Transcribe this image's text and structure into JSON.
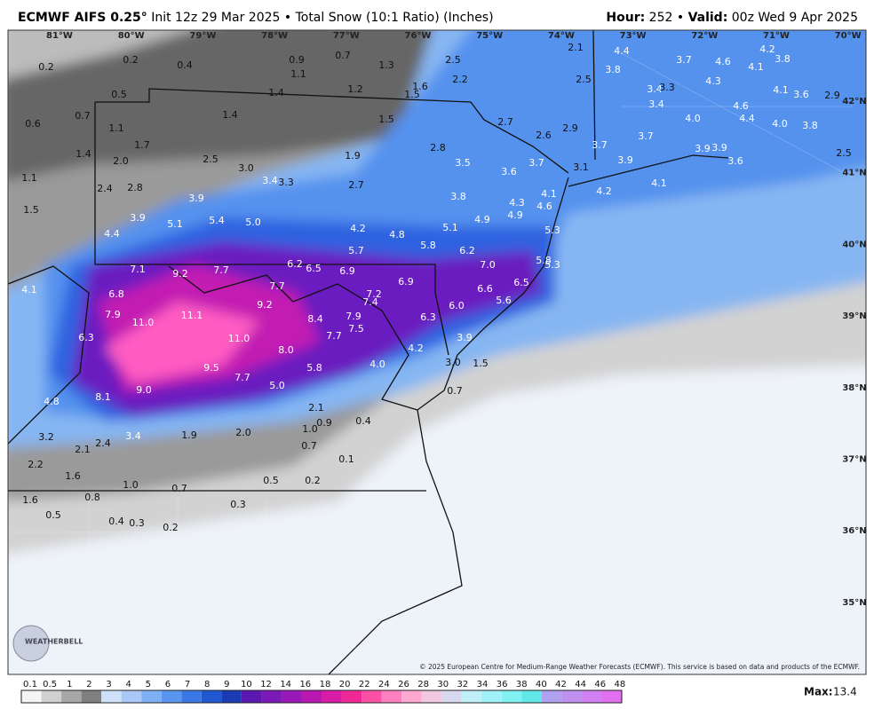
{
  "header": {
    "model": "ECMWF AIFS 0.25°",
    "run": "Init 12z 29 Mar 2025 • Total Snow (10:1 Ratio) (Inches)",
    "hour_label": "Hour:",
    "hour": "252 •",
    "valid_label": "Valid:",
    "valid": "00z Wed 9 Apr 2025"
  },
  "map": {
    "longitudes": [
      "81°W",
      "80°W",
      "79°W",
      "78°W",
      "77°W",
      "76°W",
      "75°W",
      "74°W",
      "73°W",
      "72°W",
      "71°W",
      "70°W"
    ],
    "latitudes": [
      "42°N",
      "41°N",
      "40°N",
      "39°N",
      "38°N",
      "37°N",
      "36°N",
      "35°N"
    ],
    "snow_labels": [
      "0.2",
      "0.2",
      "0.4",
      "0.9",
      "0.7",
      "1.1",
      "1.3",
      "2.5",
      "2.1",
      "4.4",
      "3.7",
      "4.6",
      "4.2",
      "3.8",
      "4.1",
      "2.2",
      "2.5",
      "3.8",
      "4.3",
      "1.6",
      "1.2",
      "1.4",
      "0.5",
      "1.5",
      "3.4",
      "3.3",
      "4.1",
      "3.6",
      "2.9",
      "0.7",
      "1.4",
      "1.5",
      "2.7",
      "3.4",
      "4.0",
      "4.6",
      "4.4",
      "4.0",
      "3.8",
      "0.6",
      "1.1",
      "2.9",
      "2.6",
      "3.7",
      "1.7",
      "3.7",
      "3.9",
      "3.9",
      "2.8",
      "1.9",
      "1.4",
      "2.0",
      "2.5",
      "3.5",
      "3.7",
      "3.9",
      "3.6",
      "2.5",
      "3.0",
      "3.6",
      "3.1",
      "1.1",
      "3.4",
      "3.3",
      "2.7",
      "4.1",
      "2.4",
      "2.8",
      "4.2",
      "4.1",
      "3.9",
      "3.8",
      "4.3",
      "4.6",
      "1.5",
      "3.9",
      "5.4",
      "5.0",
      "4.9",
      "4.9",
      "5.1",
      "4.2",
      "5.1",
      "5.3",
      "4.4",
      "4.8",
      "5.8",
      "5.7",
      "6.2",
      "5.8",
      "5.3",
      "7.0",
      "6.2",
      "6.5",
      "6.9",
      "7.7",
      "7.1",
      "9.2",
      "4.1",
      "6.8",
      "7.7",
      "6.9",
      "6.5",
      "6.6",
      "7.2",
      "7.4",
      "9.2",
      "5.6",
      "6.0",
      "7.9",
      "11.1",
      "7.9",
      "6.3",
      "11.0",
      "8.4",
      "7.5",
      "7.7",
      "6.3",
      "11.0",
      "3.9",
      "8.0",
      "4.2",
      "4.0",
      "3.0",
      "1.5",
      "9.5",
      "5.8",
      "7.7",
      "5.0",
      "9.0",
      "0.7",
      "8.1",
      "4.8",
      "2.1",
      "0.9",
      "0.4",
      "1.0",
      "2.0",
      "1.9",
      "3.4",
      "3.2",
      "2.4",
      "2.1",
      "0.7",
      "0.1",
      "2.2",
      "1.6",
      "0.5",
      "0.2",
      "1.0",
      "0.7",
      "0.8",
      "1.6",
      "0.3",
      "0.5",
      "0.4",
      "0.3",
      "0.2"
    ],
    "logo": "WEATHERBELL",
    "copyright": "© 2025 European Centre for Medium-Range Weather Forecasts (ECMWF). This service is based on data and products of the ECMWF."
  },
  "colorbar": {
    "labels": [
      "0.1",
      "0.5",
      "1",
      "2",
      "3",
      "4",
      "5",
      "6",
      "7",
      "8",
      "9",
      "10",
      "12",
      "14",
      "16",
      "18",
      "20",
      "22",
      "24",
      "26",
      "28",
      "30",
      "32",
      "34",
      "36",
      "38",
      "40",
      "42",
      "44",
      "46",
      "48"
    ],
    "max_label": "Max:",
    "max": "13.4"
  }
}
